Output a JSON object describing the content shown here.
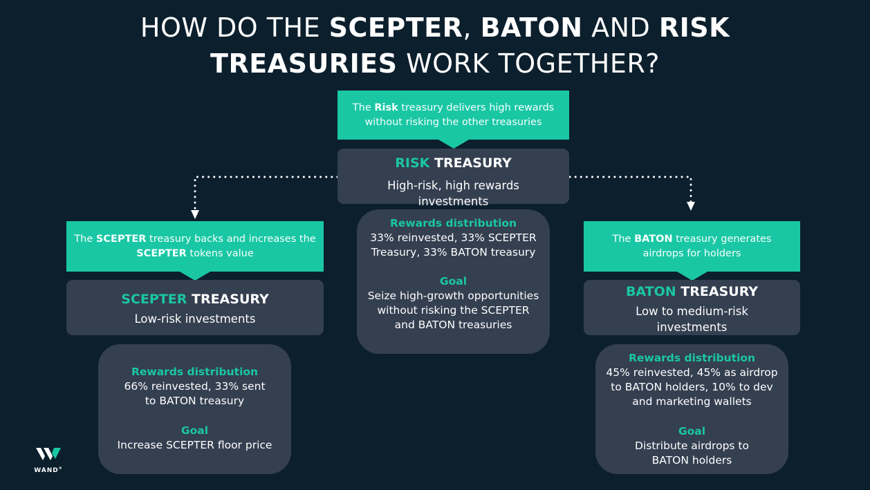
{
  "title": {
    "line1_pre": "HOW DO THE ",
    "line1_b1": "SCEPTER",
    "line1_mid": ", ",
    "line1_b2": "BATON",
    "line1_and": " AND ",
    "line1_b3": "RISK",
    "line2_b": "TREASURIES",
    "line2_rest": " WORK TOGETHER?"
  },
  "risk": {
    "callout_pre": "The ",
    "callout_bold": "Risk",
    "callout_post": " treasury delivers high rewards without risking the other treasuries",
    "name_accent": "RISK",
    "name_rest": " TREASURY",
    "desc": "High-risk, high rewards investments",
    "rewards_label": "Rewards distribution",
    "rewards_text": "33% reinvested, 33% SCEPTER Treasury, 33% BATON treasury",
    "goal_label": "Goal",
    "goal_text": "Seize high-growth opportunities without risking the SCEPTER and BATON treasuries"
  },
  "scepter": {
    "callout_pre": "The ",
    "callout_bold1": "SCEPTER",
    "callout_mid": " treasury backs and increases the ",
    "callout_bold2": "SCEPTER",
    "callout_post": " tokens value",
    "name_accent": "SCEPTER",
    "name_rest": " TREASURY",
    "desc": "Low-risk investments",
    "rewards_label": "Rewards distribution",
    "rewards_text": "66% reinvested, 33% sent to BATON treasury",
    "goal_label": "Goal",
    "goal_text": "Increase SCEPTER floor price"
  },
  "baton": {
    "callout_pre": "The ",
    "callout_bold": "BATON",
    "callout_post": " treasury generates airdrops for holders",
    "name_accent": "BATON",
    "name_rest": " TREASURY",
    "desc": "Low to medium-risk investments",
    "rewards_label": "Rewards distribution",
    "rewards_text": "45% reinvested, 45% as airdrop to BATON holders, 10% to dev and marketing wallets",
    "goal_label": "Goal",
    "goal_text": "Distribute airdrops to BATON holders"
  },
  "logo": {
    "word": "WAND",
    "mark": "®"
  },
  "colors": {
    "background": "#0c1f2d",
    "accent": "#1ac7a5",
    "box": "#343f50",
    "text": "#ffffff"
  }
}
